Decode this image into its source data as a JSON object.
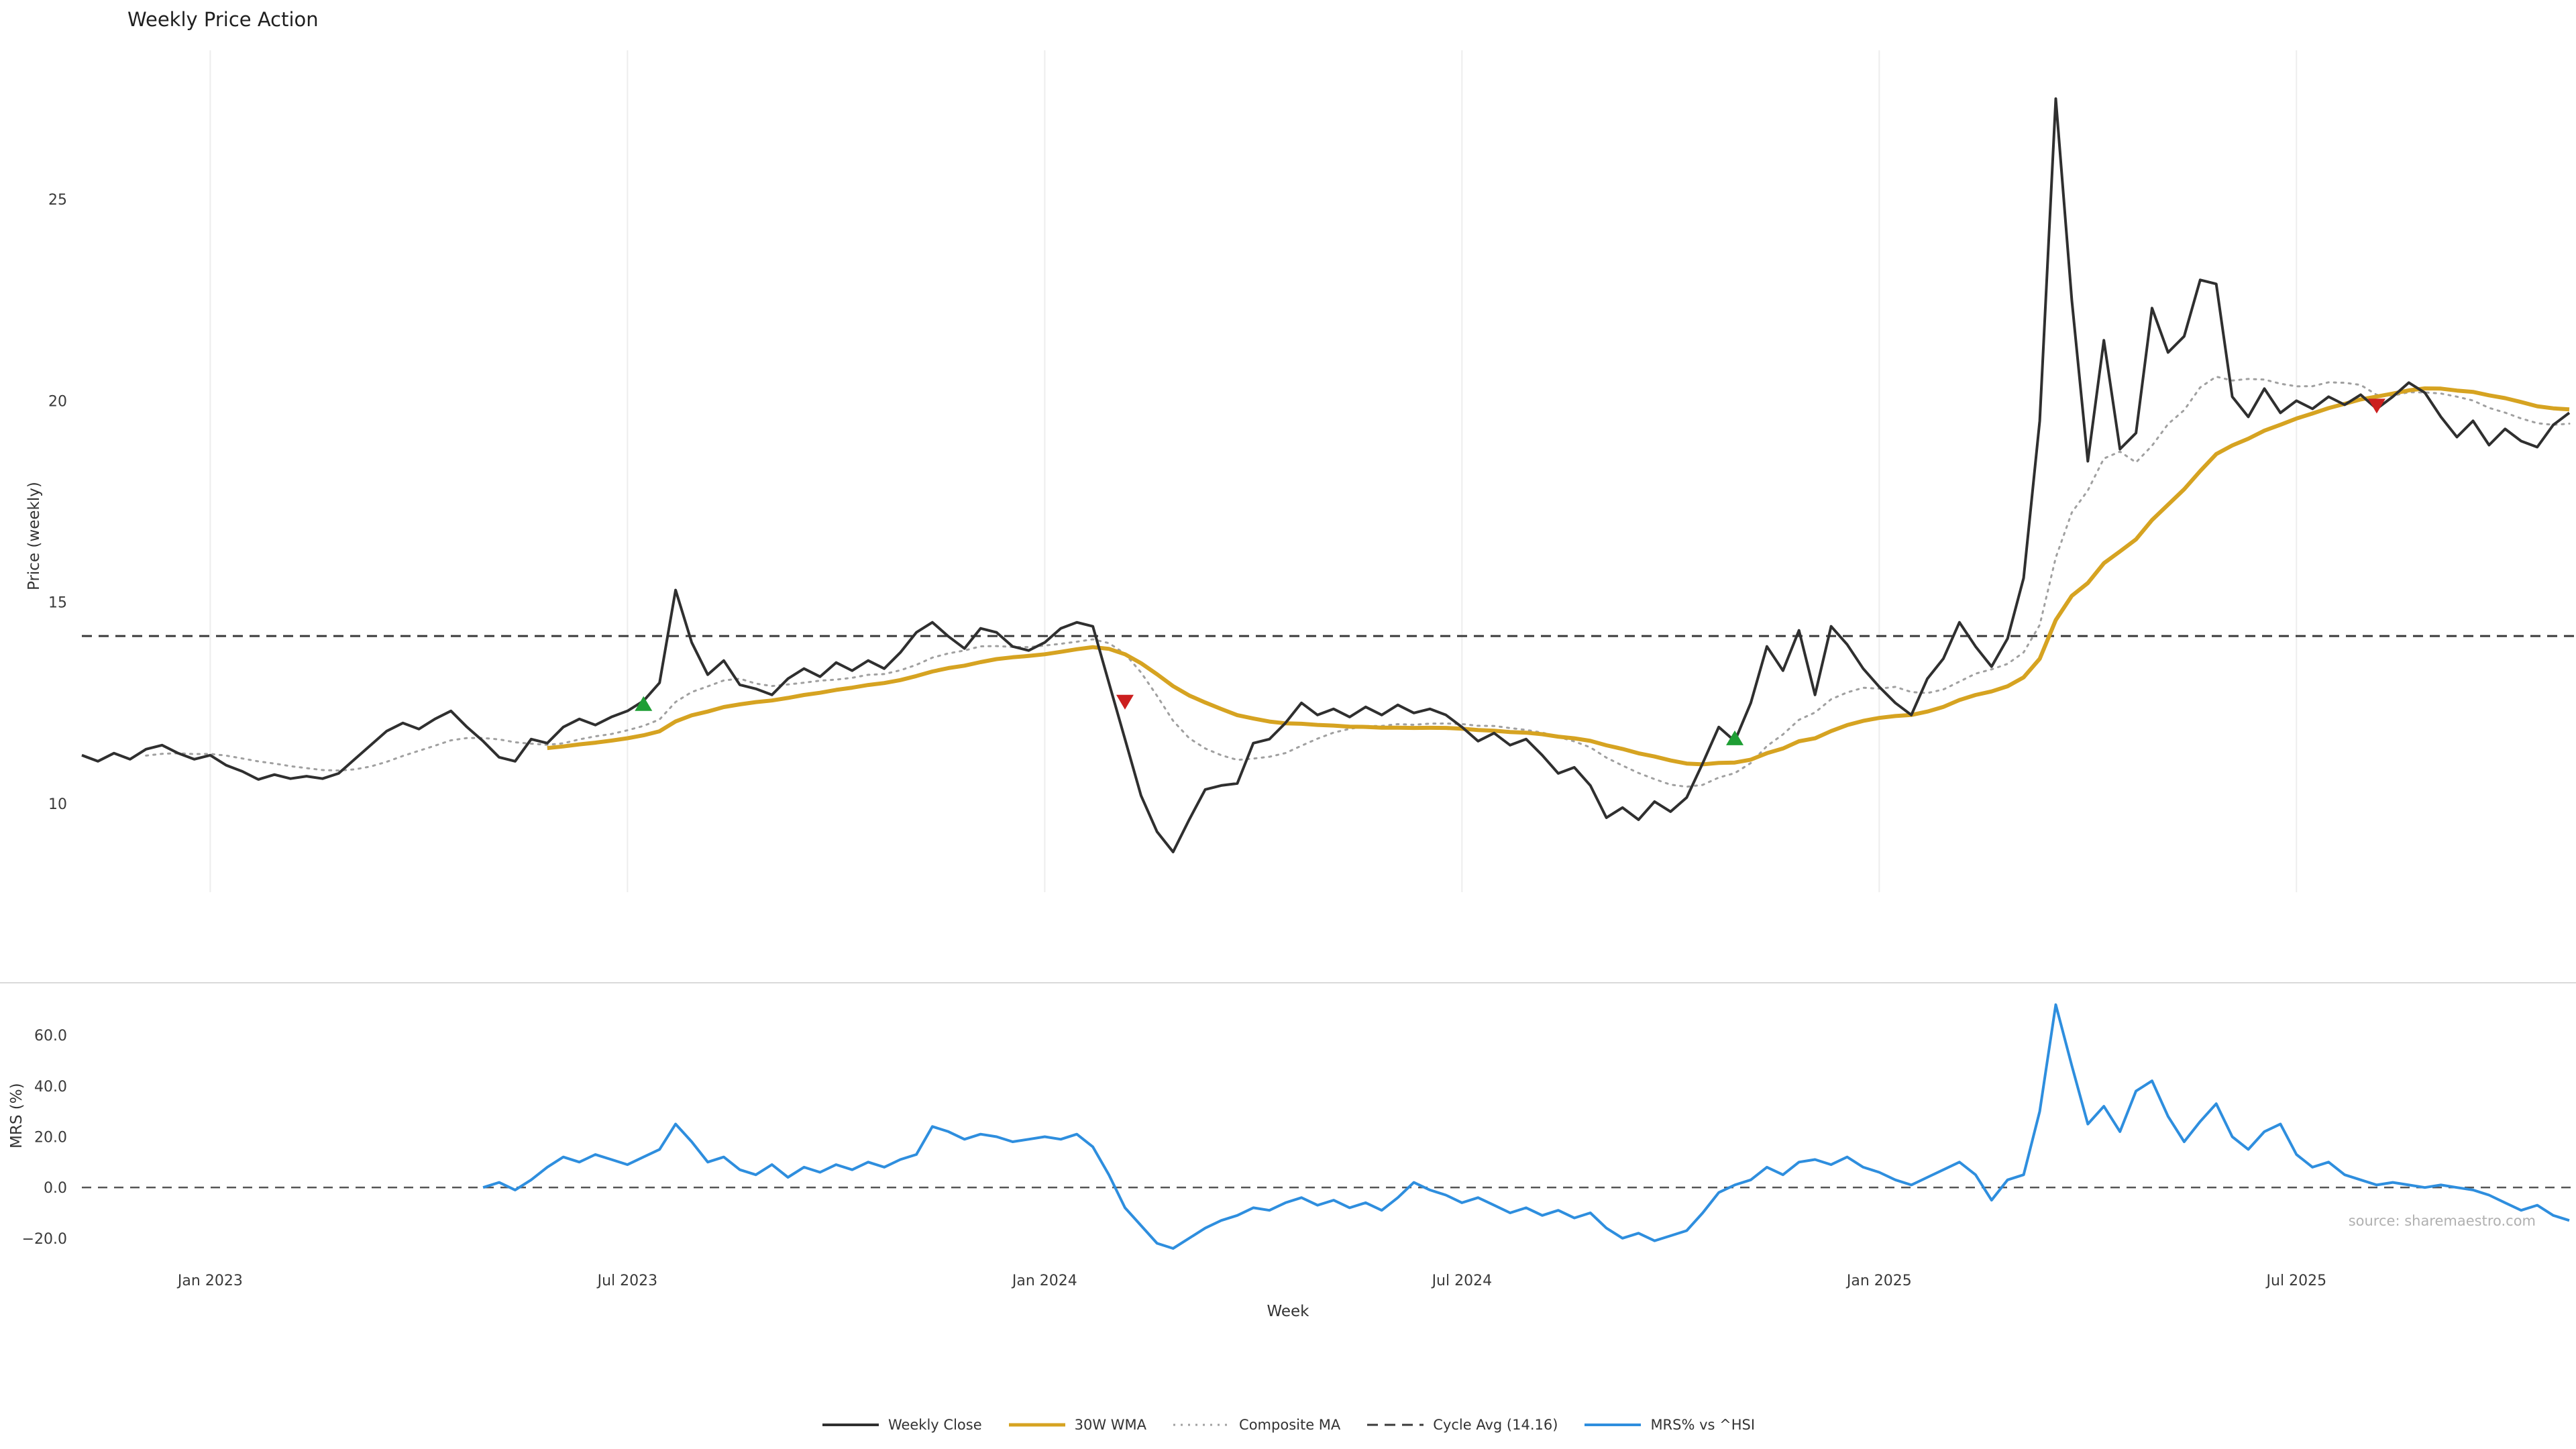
{
  "chart": {
    "title": "Weekly Price Action",
    "price_axis_label": "Price (weekly)",
    "mrs_axis_label": "MRS (%)",
    "week_axis_label": "Week",
    "source": "source: sharemaestro.com"
  },
  "colors": {
    "weekly_close": "#2f2f2f",
    "wma30": "#D6A321",
    "composite_ma": "#a0a0a0",
    "cycle_avg": "#3a3a3a",
    "mrs": "#2E8EDE",
    "buy_marker": "#1e9e34",
    "sell_marker": "#cc1f1f",
    "gridline": "#ededed",
    "panel_divider": "#d9d9d9",
    "tick_text": "#3a3a3a"
  },
  "legend": {
    "items": [
      {
        "label": "Weekly Close",
        "color": "#2f2f2f",
        "style": "solid"
      },
      {
        "label": "30W WMA",
        "color": "#D6A321",
        "style": "solid"
      },
      {
        "label": "Composite MA",
        "color": "#a0a0a0",
        "style": "dotted"
      },
      {
        "label": "Cycle Avg (14.16)",
        "color": "#3a3a3a",
        "style": "dashed"
      },
      {
        "label": "MRS% vs ^HSI",
        "color": "#2E8EDE",
        "style": "solid"
      }
    ]
  },
  "chart_data": {
    "type": "line",
    "title": "Weekly Price Action",
    "xlabel": "Week",
    "x_unit": "week-index starting early Nov 2022",
    "xticks": {
      "indices": [
        8,
        34,
        60,
        86,
        112,
        138
      ],
      "labels": [
        "Jan 2023",
        "Jul 2023",
        "Jan 2024",
        "Jul 2024",
        "Jan 2025",
        "Jul 2025"
      ]
    },
    "top_panel": {
      "ylabel": "Price (weekly)",
      "ylim": [
        7.8,
        28.7
      ],
      "yticks": {
        "values": [
          10,
          15,
          20,
          25
        ],
        "labels": [
          "10",
          "15",
          "20",
          "25"
        ]
      },
      "cycle_avg_value": 14.16,
      "weekly_close": [
        11.2,
        11.05,
        11.25,
        11.1,
        11.35,
        11.45,
        11.25,
        11.1,
        11.2,
        10.95,
        10.8,
        10.6,
        10.72,
        10.62,
        10.68,
        10.62,
        10.75,
        11.1,
        11.45,
        11.8,
        12.0,
        11.85,
        12.1,
        12.3,
        11.9,
        11.55,
        11.15,
        11.05,
        11.6,
        11.5,
        11.9,
        12.1,
        11.95,
        12.15,
        12.3,
        12.55,
        13.0,
        15.3,
        14.0,
        13.2,
        13.55,
        12.95,
        12.85,
        12.7,
        13.1,
        13.35,
        13.15,
        13.5,
        13.3,
        13.55,
        13.35,
        13.75,
        14.25,
        14.5,
        14.15,
        13.85,
        14.35,
        14.25,
        13.9,
        13.8,
        14.0,
        14.35,
        14.5,
        14.4,
        13.0,
        11.6,
        10.2,
        9.3,
        8.8,
        9.6,
        10.35,
        10.45,
        10.5,
        11.5,
        11.6,
        12.0,
        12.5,
        12.2,
        12.35,
        12.15,
        12.4,
        12.2,
        12.45,
        12.25,
        12.35,
        12.2,
        11.9,
        11.55,
        11.75,
        11.45,
        11.6,
        11.2,
        10.75,
        10.9,
        10.45,
        9.65,
        9.9,
        9.6,
        10.05,
        9.8,
        10.15,
        11.0,
        11.9,
        11.55,
        12.5,
        13.9,
        13.3,
        14.3,
        12.7,
        14.4,
        13.95,
        13.35,
        12.9,
        12.5,
        12.2,
        13.1,
        13.6,
        14.5,
        13.9,
        13.4,
        14.1,
        15.6,
        19.5,
        27.5,
        22.5,
        18.5,
        21.5,
        18.8,
        19.2,
        22.3,
        21.2,
        21.6,
        23.0,
        22.9,
        20.1,
        19.6,
        20.3,
        19.7,
        20.0,
        19.8,
        20.1,
        19.9,
        20.15,
        19.8,
        20.1,
        20.45,
        20.2,
        19.6,
        19.1,
        19.5,
        18.9,
        19.3,
        19.0,
        18.85,
        19.4,
        19.7
      ],
      "wma30": {
        "derived": "linearly-weighted moving average of weekly_close, window 30, plotted from week 29"
      },
      "composite_ma": {
        "derived": "mean of 5/10/20-week simple moving averages of weekly_close, plotted from week 4"
      },
      "buy_markers": [
        {
          "week": 35,
          "price": 12.45
        },
        {
          "week": 103,
          "price": 11.6
        }
      ],
      "sell_markers": [
        {
          "week": 65,
          "price": 12.55
        },
        {
          "week": 143,
          "price": 19.9
        }
      ]
    },
    "bottom_panel": {
      "ylabel": "MRS (%)",
      "ylim": [
        -28.5,
        78
      ],
      "yticks": {
        "values": [
          -20,
          0,
          20,
          40,
          60
        ],
        "labels": [
          "−20.0",
          "0.0",
          "20.0",
          "40.0",
          "60.0"
        ]
      },
      "zero_line_value": 0,
      "mrs_start_week": 25,
      "mrs_values": [
        0,
        2,
        -1,
        3,
        8,
        12,
        10,
        13,
        11,
        9,
        12,
        15,
        25,
        18,
        10,
        12,
        7,
        5,
        9,
        4,
        8,
        6,
        9,
        7,
        10,
        8,
        11,
        13,
        24,
        22,
        19,
        21,
        20,
        18,
        19,
        20,
        19,
        21,
        16,
        5,
        -8,
        -15,
        -22,
        -24,
        -20,
        -16,
        -13,
        -11,
        -8,
        -9,
        -6,
        -4,
        -7,
        -5,
        -8,
        -6,
        -9,
        -4,
        2,
        -1,
        -3,
        -6,
        -4,
        -7,
        -10,
        -8,
        -11,
        -9,
        -12,
        -10,
        -16,
        -20,
        -18,
        -21,
        -19,
        -17,
        -10,
        -2,
        1,
        3,
        8,
        5,
        10,
        11,
        9,
        12,
        8,
        6,
        3,
        1,
        4,
        7,
        10,
        5,
        -5,
        3,
        5,
        30,
        72,
        48,
        25,
        32,
        22,
        38,
        42,
        28,
        18,
        26,
        33,
        20,
        15,
        22,
        25,
        13,
        8,
        10,
        5,
        3,
        1,
        2,
        1,
        0,
        1,
        0,
        -1,
        -3,
        -6,
        -9,
        -7,
        -11,
        -13
      ]
    }
  }
}
